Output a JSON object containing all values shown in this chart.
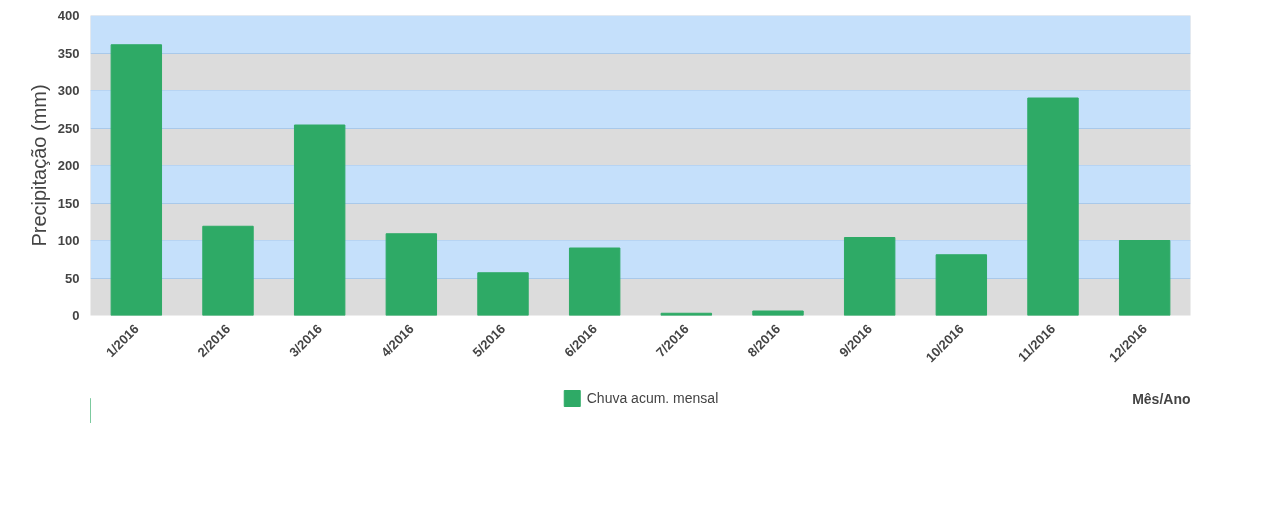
{
  "chart_data": {
    "type": "bar",
    "ylabel": "Precipitação (mm)",
    "xlabel": "Mês/Ano",
    "categories": [
      "1/2016",
      "2/2016",
      "3/2016",
      "4/2016",
      "5/2016",
      "6/2016",
      "7/2016",
      "8/2016",
      "9/2016",
      "10/2016",
      "11/2016",
      "12/2016"
    ],
    "series": [
      {
        "name": "Chuva acum. mensal",
        "color": "#2eaa66",
        "values": [
          361,
          119,
          254,
          109,
          57,
          90,
          3,
          6,
          104,
          81,
          290,
          100
        ]
      }
    ],
    "bands": [
      {
        "axis": "y",
        "from": 50,
        "to": 100,
        "color": "#c5e0fb"
      },
      {
        "axis": "y",
        "from": 150,
        "to": 200,
        "color": "#c5e0fb"
      },
      {
        "axis": "y",
        "from": 250,
        "to": 300,
        "color": "#c5e0fb"
      },
      {
        "axis": "y",
        "from": 350,
        "to": 400,
        "color": "#c5e0fb"
      }
    ],
    "ylim": [
      0,
      400
    ],
    "yticks": [
      0,
      50,
      100,
      150,
      200,
      250,
      300,
      350,
      400
    ],
    "grid": "y",
    "legend": "bottom"
  }
}
